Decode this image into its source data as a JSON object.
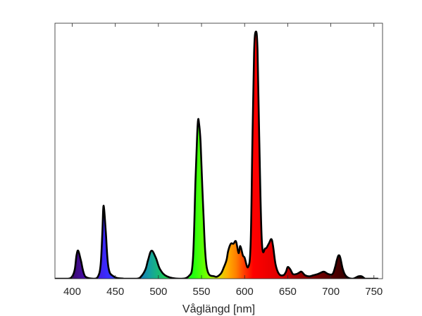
{
  "chart_data": {
    "type": "area",
    "title": "",
    "xlabel": "Våglängd [nm]",
    "ylabel": "",
    "xlim": [
      380,
      760
    ],
    "ylim": [
      0,
      1.06
    ],
    "grid": false,
    "legend": "none",
    "x_ticks": [
      400,
      450,
      500,
      550,
      600,
      650,
      700,
      750
    ],
    "x_tick_labels": [
      "400",
      "450",
      "500",
      "550",
      "600",
      "650",
      "700",
      "750"
    ],
    "fill": "spectral-rainbow",
    "line_color": "#000000",
    "series": [
      {
        "x": [
          380,
          395,
          400,
          403,
          405,
          407,
          410,
          415,
          425,
          430,
          433,
          435,
          436,
          437,
          439,
          442,
          448,
          460,
          475,
          480,
          485,
          488,
          492,
          497,
          502,
          510,
          525,
          535,
          540,
          543,
          545,
          546,
          547,
          549,
          552,
          556,
          565,
          572,
          576,
          579,
          581,
          584,
          587,
          590,
          593,
          595,
          598,
          600,
          604,
          607,
          609,
          611,
          613,
          615,
          617,
          620,
          624,
          628,
          631,
          633,
          636,
          640,
          645,
          648,
          650,
          653,
          656,
          660,
          663,
          666,
          670,
          675,
          680,
          685,
          688,
          692,
          697,
          702,
          705,
          707,
          709,
          711,
          714,
          718,
          725,
          732,
          736,
          740,
          746,
          752,
          755
        ],
        "y": [
          0.0,
          0.0,
          0.01,
          0.04,
          0.1,
          0.12,
          0.08,
          0.01,
          0.0,
          0.01,
          0.06,
          0.2,
          0.3,
          0.3,
          0.2,
          0.05,
          0.01,
          0.0,
          0.0,
          0.01,
          0.04,
          0.08,
          0.12,
          0.09,
          0.04,
          0.01,
          0.0,
          0.01,
          0.08,
          0.42,
          0.62,
          0.68,
          0.67,
          0.58,
          0.3,
          0.05,
          0.01,
          0.02,
          0.05,
          0.08,
          0.12,
          0.15,
          0.15,
          0.16,
          0.11,
          0.14,
          0.1,
          0.09,
          0.05,
          0.15,
          0.58,
          0.97,
          1.06,
          0.98,
          0.6,
          0.16,
          0.13,
          0.15,
          0.17,
          0.14,
          0.06,
          0.02,
          0.015,
          0.03,
          0.05,
          0.04,
          0.02,
          0.02,
          0.025,
          0.03,
          0.015,
          0.01,
          0.015,
          0.02,
          0.025,
          0.03,
          0.02,
          0.02,
          0.05,
          0.08,
          0.1,
          0.09,
          0.04,
          0.01,
          0.0,
          0.01,
          0.01,
          0.0,
          0.0,
          0.0,
          0.0
        ]
      }
    ]
  }
}
